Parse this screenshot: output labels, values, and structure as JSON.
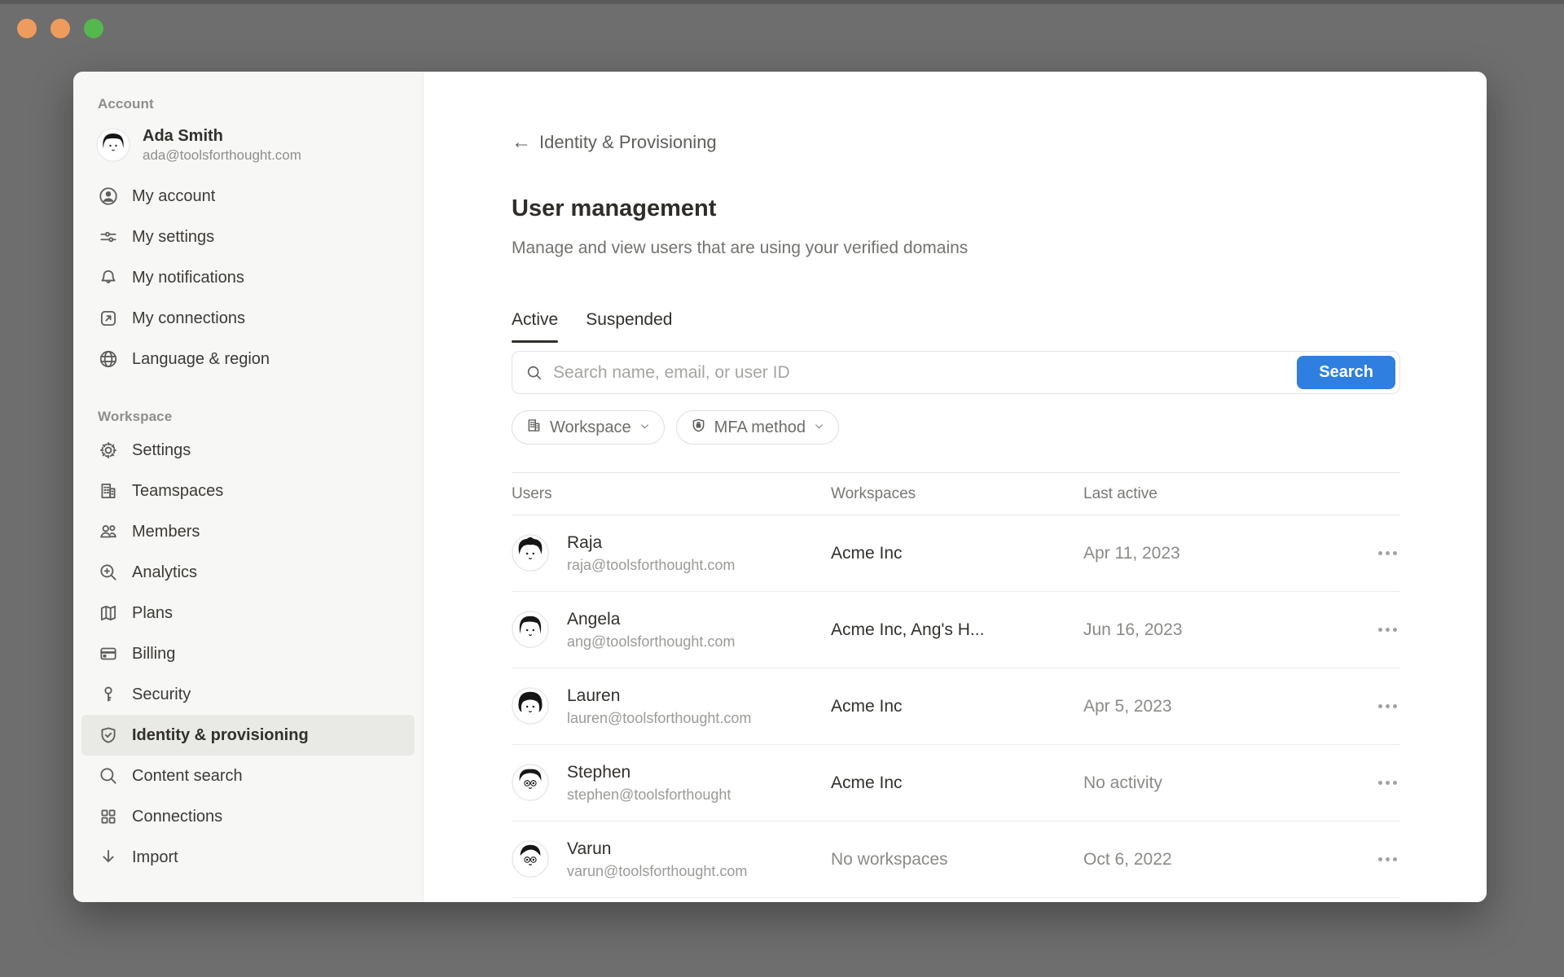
{
  "colors": {
    "desktop_bg": "#6e6e6e",
    "accent_blue": "#2f7fe0",
    "sidebar_bg": "#f7f7f5",
    "traffic_lights": [
      "#ee9c5d",
      "#ee9c5d",
      "#54b84e"
    ]
  },
  "sidebar": {
    "account_header": "Account",
    "profile": {
      "name": "Ada Smith",
      "email": "ada@toolsforthought.com",
      "avatar": "ada"
    },
    "account_items": [
      {
        "label": "My account",
        "icon": "person-circle-icon"
      },
      {
        "label": "My settings",
        "icon": "sliders-icon"
      },
      {
        "label": "My notifications",
        "icon": "bell-icon"
      },
      {
        "label": "My connections",
        "icon": "arrow-out-box-icon"
      },
      {
        "label": "Language & region",
        "icon": "globe-icon"
      }
    ],
    "workspace_header": "Workspace",
    "workspace_items": [
      {
        "label": "Settings",
        "icon": "gear-icon",
        "active": false
      },
      {
        "label": "Teamspaces",
        "icon": "building-icon",
        "active": false
      },
      {
        "label": "Members",
        "icon": "people-icon",
        "active": false
      },
      {
        "label": "Analytics",
        "icon": "magnifier-plus-icon",
        "active": false
      },
      {
        "label": "Plans",
        "icon": "map-icon",
        "active": false
      },
      {
        "label": "Billing",
        "icon": "credit-card-icon",
        "active": false
      },
      {
        "label": "Security",
        "icon": "key-icon",
        "active": false
      },
      {
        "label": "Identity & provisioning",
        "icon": "shield-check-icon",
        "active": true
      },
      {
        "label": "Content search",
        "icon": "magnifier-icon",
        "active": false
      },
      {
        "label": "Connections",
        "icon": "grid-icon",
        "active": false
      },
      {
        "label": "Import",
        "icon": "download-arrow-icon",
        "active": false
      }
    ]
  },
  "main": {
    "back_label": "Identity & Provisioning",
    "title": "User management",
    "subtitle": "Manage and view users that are using your verified domains",
    "tabs": [
      {
        "label": "Active",
        "active": true
      },
      {
        "label": "Suspended",
        "active": false
      }
    ],
    "search": {
      "placeholder": "Search name, email, or user ID",
      "button_label": "Search"
    },
    "filters": [
      {
        "label": "Workspace",
        "icon": "building-icon"
      },
      {
        "label": "MFA method",
        "icon": "shield-lock-icon"
      }
    ],
    "table": {
      "columns": [
        "Users",
        "Workspaces",
        "Last active"
      ],
      "rows": [
        {
          "name": "Raja",
          "email": "raja@toolsforthought.com",
          "workspaces": "Acme Inc",
          "last_active": "Apr 11, 2023",
          "avatar": "raja"
        },
        {
          "name": "Angela",
          "email": "ang@toolsforthought.com",
          "workspaces": "Acme Inc, Ang's H...",
          "last_active": "Jun 16, 2023",
          "avatar": "angela"
        },
        {
          "name": "Lauren",
          "email": "lauren@toolsforthought.com",
          "workspaces": "Acme Inc",
          "last_active": "Apr 5, 2023",
          "avatar": "lauren"
        },
        {
          "name": "Stephen",
          "email": "stephen@toolsforthought",
          "workspaces": "Acme Inc",
          "last_active": "No activity",
          "avatar": "stephen"
        },
        {
          "name": "Varun",
          "email": "varun@toolsforthought.com",
          "workspaces": "No workspaces",
          "last_active": "Oct 6, 2022",
          "avatar": "varun"
        }
      ]
    }
  }
}
